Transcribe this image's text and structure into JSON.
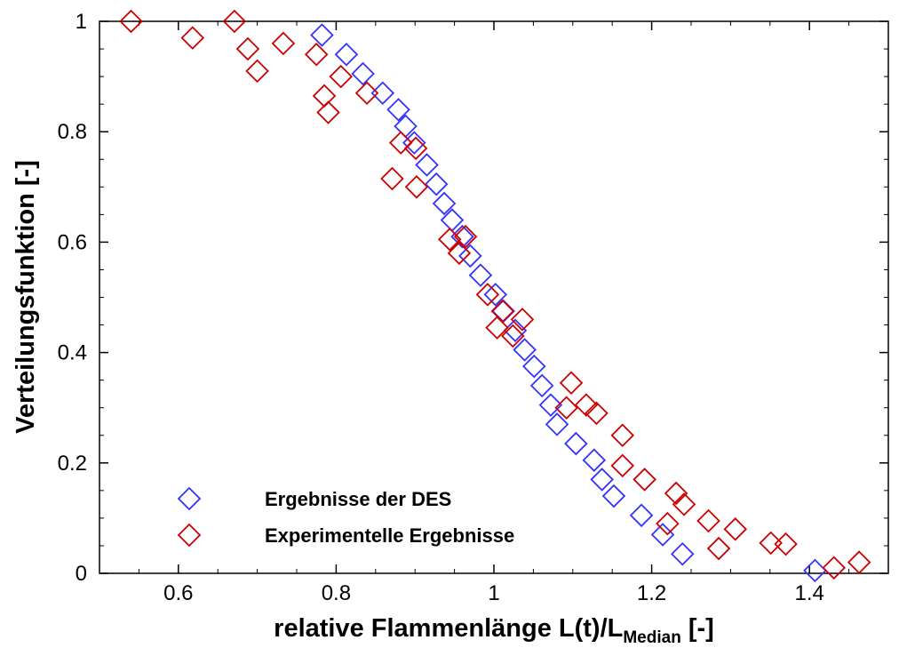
{
  "chart_data": {
    "type": "scatter",
    "xlabel": {
      "main": "relative Flammenlänge L(t)/L",
      "sub": "Median",
      "tail": " [-]"
    },
    "ylabel": "Verteilungsfunktion [-]",
    "xlim": [
      0.5,
      1.5
    ],
    "ylim": [
      0,
      1
    ],
    "x_ticks": [
      0.6,
      0.8,
      1,
      1.2,
      1.4
    ],
    "x_tick_labels": [
      "0.6",
      "0.8",
      "1",
      "1.2",
      "1.4"
    ],
    "y_ticks": [
      0,
      0.2,
      0.4,
      0.6,
      0.8,
      1
    ],
    "y_tick_labels": [
      "0",
      "0.2",
      "0.4",
      "0.6",
      "0.8",
      "1"
    ],
    "grid": false,
    "legend_position": "bottom-left",
    "series": [
      {
        "name": "Ergebnisse der DES",
        "marker": "diamond-open",
        "color": "#3333ff",
        "points": [
          [
            0.782,
            0.975
          ],
          [
            0.813,
            0.94
          ],
          [
            0.834,
            0.905
          ],
          [
            0.859,
            0.87
          ],
          [
            0.879,
            0.84
          ],
          [
            0.888,
            0.81
          ],
          [
            0.899,
            0.78
          ],
          [
            0.915,
            0.74
          ],
          [
            0.927,
            0.705
          ],
          [
            0.937,
            0.67
          ],
          [
            0.947,
            0.64
          ],
          [
            0.96,
            0.61
          ],
          [
            0.97,
            0.575
          ],
          [
            0.983,
            0.54
          ],
          [
            1.002,
            0.505
          ],
          [
            1.012,
            0.475
          ],
          [
            1.027,
            0.44
          ],
          [
            1.039,
            0.405
          ],
          [
            1.051,
            0.375
          ],
          [
            1.061,
            0.34
          ],
          [
            1.072,
            0.305
          ],
          [
            1.08,
            0.27
          ],
          [
            1.104,
            0.235
          ],
          [
            1.127,
            0.205
          ],
          [
            1.137,
            0.17
          ],
          [
            1.152,
            0.14
          ],
          [
            1.187,
            0.105
          ],
          [
            1.214,
            0.07
          ],
          [
            1.239,
            0.035
          ],
          [
            1.407,
            0.005
          ]
        ]
      },
      {
        "name": "Experimentelle Ergebnisse",
        "marker": "diamond-open",
        "color": "#cc0000",
        "points": [
          [
            0.54,
            1.0
          ],
          [
            0.671,
            1.0
          ],
          [
            0.618,
            0.97
          ],
          [
            0.733,
            0.96
          ],
          [
            0.688,
            0.95
          ],
          [
            0.775,
            0.94
          ],
          [
            0.7,
            0.91
          ],
          [
            0.806,
            0.9
          ],
          [
            0.839,
            0.87
          ],
          [
            0.785,
            0.865
          ],
          [
            0.79,
            0.835
          ],
          [
            0.882,
            0.78
          ],
          [
            0.901,
            0.77
          ],
          [
            0.871,
            0.715
          ],
          [
            0.902,
            0.7
          ],
          [
            0.964,
            0.61
          ],
          [
            0.944,
            0.605
          ],
          [
            0.956,
            0.58
          ],
          [
            0.992,
            0.505
          ],
          [
            1.011,
            0.475
          ],
          [
            1.036,
            0.46
          ],
          [
            1.004,
            0.445
          ],
          [
            1.024,
            0.43
          ],
          [
            1.098,
            0.345
          ],
          [
            1.117,
            0.305
          ],
          [
            1.092,
            0.3
          ],
          [
            1.13,
            0.29
          ],
          [
            1.163,
            0.25
          ],
          [
            1.163,
            0.195
          ],
          [
            1.191,
            0.17
          ],
          [
            1.231,
            0.145
          ],
          [
            1.241,
            0.125
          ],
          [
            1.272,
            0.095
          ],
          [
            1.22,
            0.09
          ],
          [
            1.306,
            0.08
          ],
          [
            1.285,
            0.045
          ],
          [
            1.351,
            0.055
          ],
          [
            1.37,
            0.053
          ],
          [
            1.431,
            0.01
          ],
          [
            1.463,
            0.02
          ]
        ]
      }
    ]
  }
}
